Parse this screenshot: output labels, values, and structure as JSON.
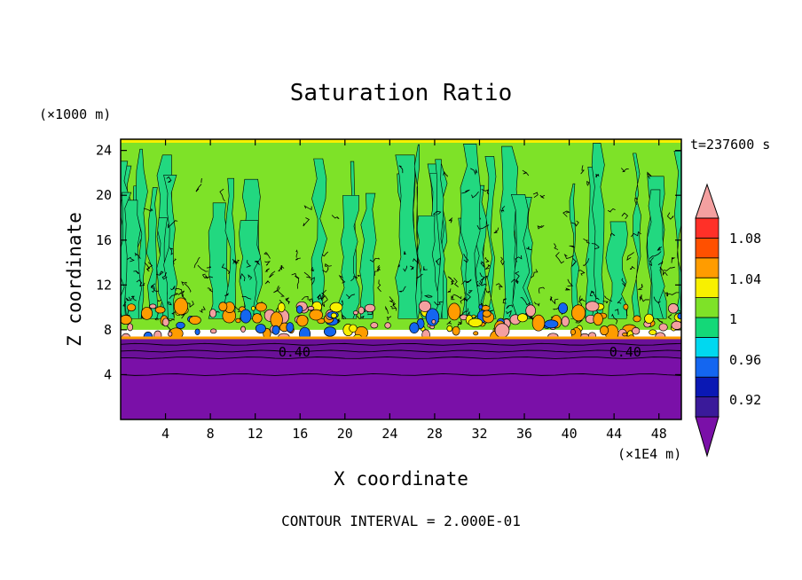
{
  "chart_data": {
    "type": "heatmap",
    "title": "Saturation Ratio",
    "xlabel": "X coordinate",
    "ylabel": "Z coordinate",
    "x_unit": "(×1E4 m)",
    "y_unit": "(×1000 m)",
    "time_label": "t=237600 s",
    "footer": "CONTOUR INTERVAL = 2.000E-01",
    "xlim": [
      0,
      50
    ],
    "ylim": [
      0,
      25
    ],
    "x_ticks": [
      "4",
      "8",
      "12",
      "16",
      "20",
      "24",
      "28",
      "32",
      "36",
      "40",
      "44",
      "48"
    ],
    "y_ticks": [
      "4",
      "8",
      "12",
      "16",
      "20",
      "24"
    ],
    "contour_labels": [
      {
        "text": "0.40",
        "x": 15.5,
        "z": 5.6
      },
      {
        "text": "0.40",
        "x": 45.0,
        "z": 5.6
      }
    ],
    "colorbar": {
      "labels": [
        "1.08",
        "1.04",
        "1",
        "0.96",
        "0.92"
      ],
      "colors": [
        "#7a10a8",
        "#3a1a9a",
        "#0a18b4",
        "#1466f0",
        "#00d8f0",
        "#14d878",
        "#7ee228",
        "#f8f000",
        "#ff9c00",
        "#ff5000",
        "#ff3028",
        "#f4a0a0"
      ]
    },
    "field_colors": {
      "deep_dry": "#7a10a8",
      "dry_band": "#6a1098",
      "moist_green": "#22d880",
      "saturated_green": "#7ee228",
      "supersat_pink": "#f4a0a0",
      "orange": "#ff9c00",
      "yellow": "#f8f000",
      "blue": "#1466f0"
    }
  }
}
